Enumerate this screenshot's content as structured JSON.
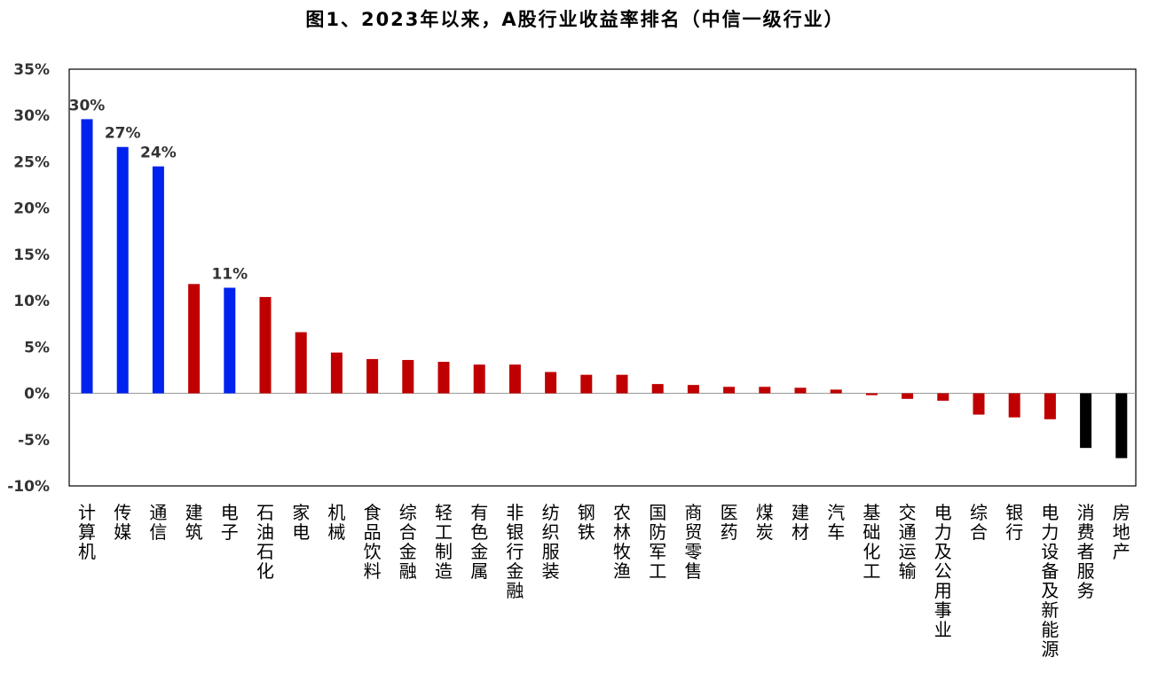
{
  "chart_data": {
    "type": "bar",
    "title": "图1、2023年以来，A股行业收益率排名（中信一级行业）",
    "ylim": [
      -10,
      35
    ],
    "yticks": [
      35,
      30,
      25,
      20,
      15,
      10,
      5,
      0,
      -5,
      -10
    ],
    "ytick_labels": [
      "35%",
      "30%",
      "25%",
      "20%",
      "15%",
      "10%",
      "5%",
      "0%",
      "-5%",
      "-10%"
    ],
    "grid": false,
    "legend": "none",
    "categories": [
      "计算机",
      "传媒",
      "通信",
      "建筑",
      "电子",
      "石油石化",
      "家电",
      "机械",
      "食品饮料",
      "综合金融",
      "轻工制造",
      "有色金属",
      "非银行金融",
      "纺织服装",
      "钢铁",
      "农林牧渔",
      "国防军工",
      "商贸零售",
      "医药",
      "煤炭",
      "建材",
      "汽车",
      "基础化工",
      "交通运输",
      "电力及公用事业",
      "综合",
      "银行",
      "电力设备及新能源",
      "消费者服务",
      "房地产"
    ],
    "values": [
      29.6,
      26.6,
      24.5,
      11.8,
      11.4,
      10.4,
      6.6,
      4.4,
      3.7,
      3.6,
      3.4,
      3.1,
      3.1,
      2.3,
      2.0,
      2.0,
      1.0,
      0.9,
      0.7,
      0.7,
      0.6,
      0.4,
      -0.2,
      -0.6,
      -0.8,
      -2.3,
      -2.6,
      -2.8,
      -5.9,
      -7.0
    ],
    "bar_colors": [
      "#0022ee",
      "#0022ee",
      "#0022ee",
      "#c00000",
      "#0022ee",
      "#c00000",
      "#c00000",
      "#c00000",
      "#c00000",
      "#c00000",
      "#c00000",
      "#c00000",
      "#c00000",
      "#c00000",
      "#c00000",
      "#c00000",
      "#c00000",
      "#c00000",
      "#c00000",
      "#c00000",
      "#c00000",
      "#c00000",
      "#c00000",
      "#c00000",
      "#c00000",
      "#c00000",
      "#c00000",
      "#c00000",
      "#000000",
      "#000000"
    ],
    "data_labels": [
      {
        "index": 0,
        "text": "30%"
      },
      {
        "index": 1,
        "text": "27%"
      },
      {
        "index": 2,
        "text": "24%"
      },
      {
        "index": 4,
        "text": "11%"
      }
    ]
  }
}
